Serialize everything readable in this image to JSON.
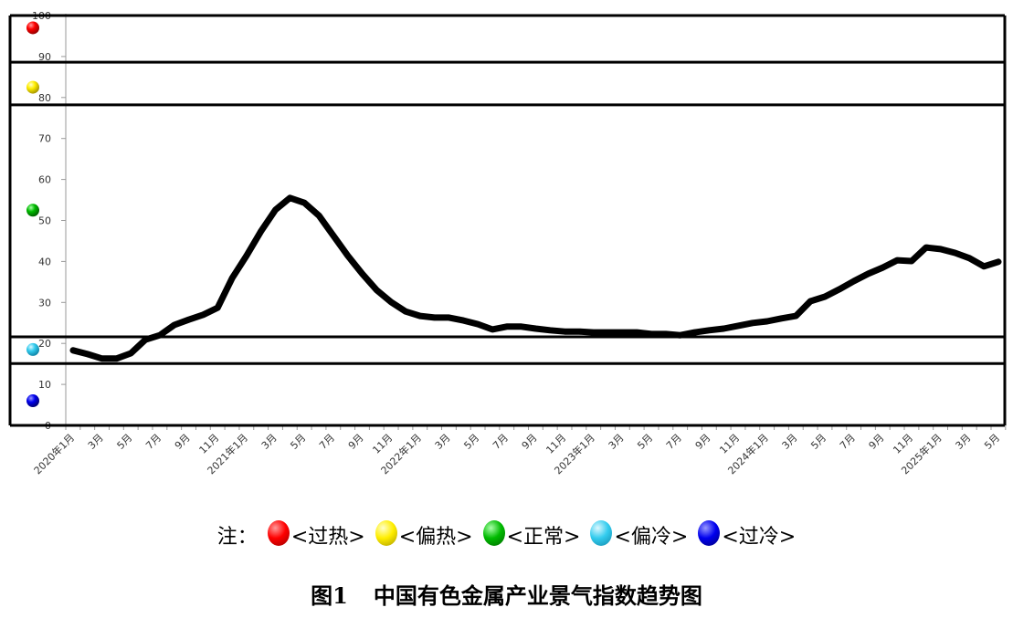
{
  "chart_data": {
    "type": "line",
    "title": "图1 中国有色金属产业景气指数趋势图",
    "xlabel": "",
    "ylabel": "",
    "ylim": [
      0,
      100
    ],
    "yticks": [
      0,
      10,
      20,
      30,
      40,
      50,
      60,
      70,
      80,
      90,
      100
    ],
    "grid": false,
    "x_tick_labels": [
      "2020年1月",
      "3月",
      "5月",
      "7月",
      "9月",
      "11月",
      "2021年1月",
      "3月",
      "5月",
      "7月",
      "9月",
      "11月",
      "2022年1月",
      "3月",
      "5月",
      "7月",
      "9月",
      "11月",
      "2023年1月",
      "3月",
      "5月",
      "7月",
      "9月",
      "11月",
      "2024年1月",
      "3月",
      "5月",
      "7月",
      "9月",
      "11月",
      "2025年1月",
      "3月",
      "5月"
    ],
    "x": [
      "2020-01",
      "2020-02",
      "2020-03",
      "2020-04",
      "2020-05",
      "2020-06",
      "2020-07",
      "2020-08",
      "2020-09",
      "2020-10",
      "2020-11",
      "2020-12",
      "2021-01",
      "2021-02",
      "2021-03",
      "2021-04",
      "2021-05",
      "2021-06",
      "2021-07",
      "2021-08",
      "2021-09",
      "2021-10",
      "2021-11",
      "2021-12",
      "2022-01",
      "2022-02",
      "2022-03",
      "2022-04",
      "2022-05",
      "2022-06",
      "2022-07",
      "2022-08",
      "2022-09",
      "2022-10",
      "2022-11",
      "2022-12",
      "2023-01",
      "2023-02",
      "2023-03",
      "2023-04",
      "2023-05",
      "2023-06",
      "2023-07",
      "2023-08",
      "2023-09",
      "2023-10",
      "2023-11",
      "2023-12",
      "2024-01",
      "2024-02",
      "2024-03",
      "2024-04",
      "2024-05",
      "2024-06",
      "2024-07",
      "2024-08",
      "2024-09",
      "2024-10",
      "2024-11",
      "2024-12",
      "2025-01",
      "2025-02",
      "2025-03",
      "2025-04",
      "2025-05"
    ],
    "series": [
      {
        "name": "中国有色金属产业景气指数",
        "color": "#000000",
        "values": [
          18.3,
          17.4,
          16.3,
          16.3,
          17.6,
          20.9,
          22.0,
          24.5,
          25.8,
          27.0,
          28.7,
          35.9,
          41.4,
          47.4,
          52.6,
          55.5,
          54.3,
          51.2,
          46.3,
          41.4,
          37.0,
          33.0,
          30.1,
          27.8,
          26.7,
          26.3,
          26.3,
          25.6,
          24.7,
          23.4,
          24.1,
          24.1,
          23.6,
          23.2,
          22.9,
          22.9,
          22.7,
          22.7,
          22.7,
          22.7,
          22.3,
          22.3,
          22.0,
          22.7,
          23.2,
          23.6,
          24.3,
          25.0,
          25.4,
          26.1,
          26.7,
          30.3,
          31.4,
          33.2,
          35.2,
          37.0,
          38.5,
          40.3,
          40.1,
          43.4,
          43.0,
          42.1,
          40.8,
          38.8,
          39.9
        ]
      }
    ],
    "zones": [
      {
        "name": "过热",
        "from": 88.6,
        "to": 100,
        "color": "#ff0000",
        "marker_value": 97
      },
      {
        "name": "偏热",
        "from": 78.2,
        "to": 88.6,
        "color": "#ffee00",
        "marker_value": 82.5
      },
      {
        "name": "正常",
        "from": 21.6,
        "to": 78.2,
        "color": "#00bb00",
        "marker_value": 52.5
      },
      {
        "name": "偏冷",
        "from": 15.1,
        "to": 21.6,
        "color": "#33ccee",
        "marker_value": 18.5
      },
      {
        "name": "过冷",
        "from": 0,
        "to": 15.1,
        "color": "#0000ee",
        "marker_value": 6
      }
    ]
  },
  "legend": {
    "prefix": "注：",
    "items": [
      {
        "label": "<过热>",
        "color": "#ff0000"
      },
      {
        "label": "<偏热>",
        "color": "#ffee00"
      },
      {
        "label": "<正常>",
        "color": "#00bb00"
      },
      {
        "label": "<偏冷>",
        "color": "#33ccee"
      },
      {
        "label": "<过冷>",
        "color": "#0000ee"
      }
    ]
  },
  "caption": {
    "number": "图1",
    "title": "中国有色金属产业景气指数趋势图"
  }
}
